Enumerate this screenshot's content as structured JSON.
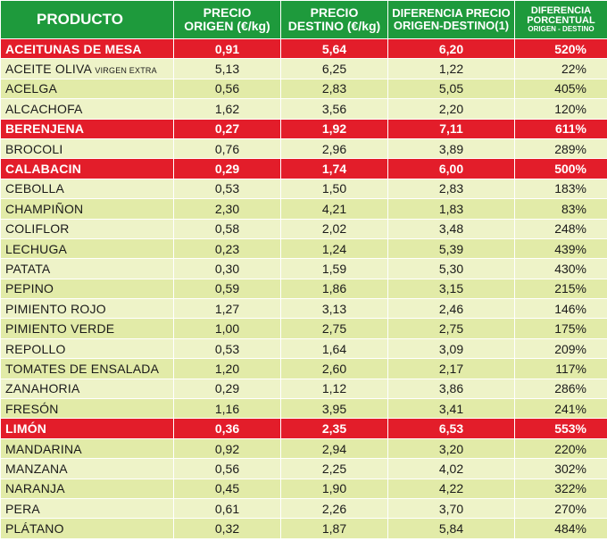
{
  "header": {
    "producto": "PRODUCTO",
    "precio_origen": [
      "PRECIO",
      "ORIGEN (€/kg)"
    ],
    "precio_destino": [
      "PRECIO",
      "DESTINO (€/kg)"
    ],
    "diferencia_precio": [
      "DIFERENCIA PRECIO",
      "ORIGEN-DESTINO(1)"
    ],
    "diferencia_porcentual": [
      "DIFERENCIA",
      "PORCENTUAL",
      "ORIGEN - DESTINO"
    ]
  },
  "colors": {
    "header_bg": "#1e9a3c",
    "highlight_row": "#e31d2a",
    "row_light": "#eef3c8",
    "row_dark": "#e2eba8"
  },
  "rows": [
    {
      "producto": "ACEITUNAS DE MESA",
      "qualifier": "",
      "origen": "0,91",
      "destino": "5,64",
      "diferencia": "6,20",
      "porcentaje": "520%",
      "highlight": true
    },
    {
      "producto": "ACEITE OLIVA",
      "qualifier": "VIRGEN EXTRA",
      "origen": "5,13",
      "destino": "6,25",
      "diferencia": "1,22",
      "porcentaje": "22%",
      "highlight": false
    },
    {
      "producto": "ACELGA",
      "qualifier": "",
      "origen": "0,56",
      "destino": "2,83",
      "diferencia": "5,05",
      "porcentaje": "405%",
      "highlight": false
    },
    {
      "producto": "ALCACHOFA",
      "qualifier": "",
      "origen": "1,62",
      "destino": "3,56",
      "diferencia": "2,20",
      "porcentaje": "120%",
      "highlight": false
    },
    {
      "producto": "BERENJENA",
      "qualifier": "",
      "origen": "0,27",
      "destino": "1,92",
      "diferencia": "7,11",
      "porcentaje": "611%",
      "highlight": true
    },
    {
      "producto": "BROCOLI",
      "qualifier": "",
      "origen": "0,76",
      "destino": "2,96",
      "diferencia": "3,89",
      "porcentaje": "289%",
      "highlight": false
    },
    {
      "producto": "CALABACIN",
      "qualifier": "",
      "origen": "0,29",
      "destino": "1,74",
      "diferencia": "6,00",
      "porcentaje": "500%",
      "highlight": true
    },
    {
      "producto": "CEBOLLA",
      "qualifier": "",
      "origen": "0,53",
      "destino": "1,50",
      "diferencia": "2,83",
      "porcentaje": "183%",
      "highlight": false
    },
    {
      "producto": "CHAMPIÑON",
      "qualifier": "",
      "origen": "2,30",
      "destino": "4,21",
      "diferencia": "1,83",
      "porcentaje": "83%",
      "highlight": false
    },
    {
      "producto": "COLIFLOR",
      "qualifier": "",
      "origen": "0,58",
      "destino": "2,02",
      "diferencia": "3,48",
      "porcentaje": "248%",
      "highlight": false
    },
    {
      "producto": "LECHUGA",
      "qualifier": "",
      "origen": "0,23",
      "destino": "1,24",
      "diferencia": "5,39",
      "porcentaje": "439%",
      "highlight": false
    },
    {
      "producto": "PATATA",
      "qualifier": "",
      "origen": "0,30",
      "destino": "1,59",
      "diferencia": "5,30",
      "porcentaje": "430%",
      "highlight": false
    },
    {
      "producto": "PEPINO",
      "qualifier": "",
      "origen": "0,59",
      "destino": "1,86",
      "diferencia": "3,15",
      "porcentaje": "215%",
      "highlight": false
    },
    {
      "producto": "PIMIENTO ROJO",
      "qualifier": "",
      "origen": "1,27",
      "destino": "3,13",
      "diferencia": "2,46",
      "porcentaje": "146%",
      "highlight": false
    },
    {
      "producto": "PIMIENTO VERDE",
      "qualifier": "",
      "origen": "1,00",
      "destino": "2,75",
      "diferencia": "2,75",
      "porcentaje": "175%",
      "highlight": false
    },
    {
      "producto": "REPOLLO",
      "qualifier": "",
      "origen": "0,53",
      "destino": "1,64",
      "diferencia": "3,09",
      "porcentaje": "209%",
      "highlight": false
    },
    {
      "producto": "TOMATES DE ENSALADA",
      "qualifier": "",
      "origen": "1,20",
      "destino": "2,60",
      "diferencia": "2,17",
      "porcentaje": "117%",
      "highlight": false
    },
    {
      "producto": "ZANAHORIA",
      "qualifier": "",
      "origen": "0,29",
      "destino": "1,12",
      "diferencia": "3,86",
      "porcentaje": "286%",
      "highlight": false
    },
    {
      "producto": "FRESÓN",
      "qualifier": "",
      "origen": "1,16",
      "destino": "3,95",
      "diferencia": "3,41",
      "porcentaje": "241%",
      "highlight": false
    },
    {
      "producto": "LIMÓN",
      "qualifier": "",
      "origen": "0,36",
      "destino": "2,35",
      "diferencia": "6,53",
      "porcentaje": "553%",
      "highlight": true
    },
    {
      "producto": "MANDARINA",
      "qualifier": "",
      "origen": "0,92",
      "destino": "2,94",
      "diferencia": "3,20",
      "porcentaje": "220%",
      "highlight": false
    },
    {
      "producto": "MANZANA",
      "qualifier": "",
      "origen": "0,56",
      "destino": "2,25",
      "diferencia": "4,02",
      "porcentaje": "302%",
      "highlight": false
    },
    {
      "producto": "NARANJA",
      "qualifier": "",
      "origen": "0,45",
      "destino": "1,90",
      "diferencia": "4,22",
      "porcentaje": "322%",
      "highlight": false
    },
    {
      "producto": "PERA",
      "qualifier": "",
      "origen": "0,61",
      "destino": "2,26",
      "diferencia": "3,70",
      "porcentaje": "270%",
      "highlight": false
    },
    {
      "producto": "PLÁTANO",
      "qualifier": "",
      "origen": "0,32",
      "destino": "1,87",
      "diferencia": "5,84",
      "porcentaje": "484%",
      "highlight": false
    }
  ]
}
